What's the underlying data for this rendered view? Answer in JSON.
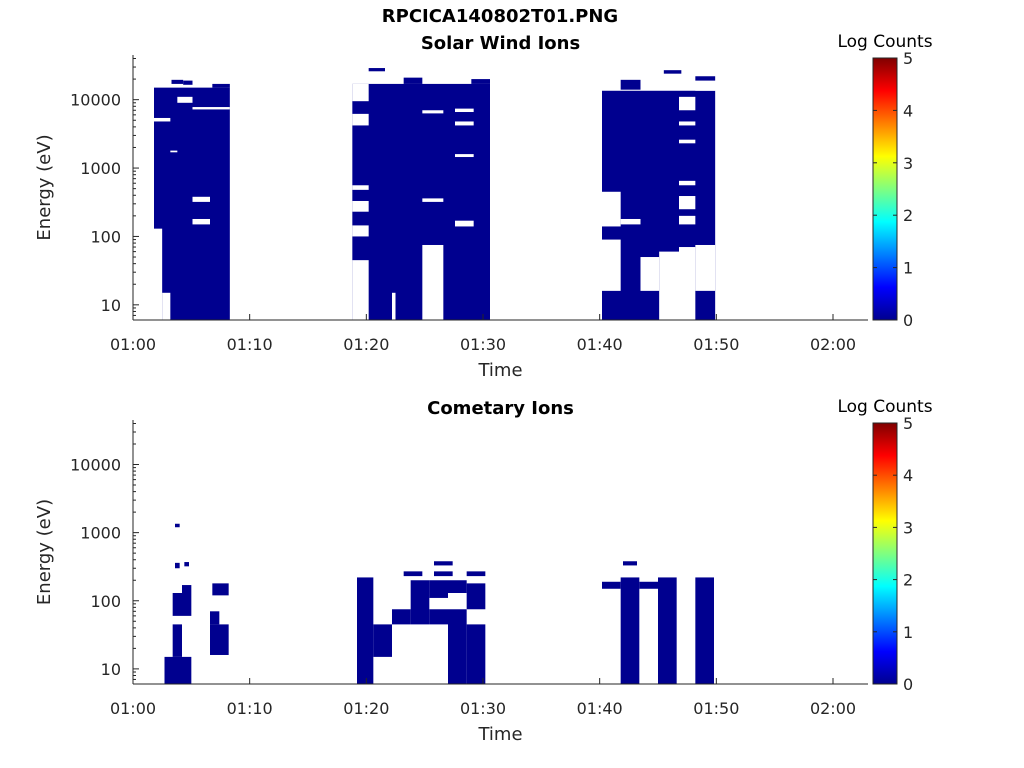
{
  "figure": {
    "title": "RPCICA140802T01.PNG"
  },
  "chart_data": [
    {
      "type": "heatmap",
      "title": "Solar Wind Ions",
      "xlabel": "Time",
      "ylabel": "Energy (eV)",
      "yscale": "log",
      "ylim": [
        6,
        45000
      ],
      "xlim": [
        "01:00",
        "02:03"
      ],
      "xticks": [
        "01:00",
        "01:10",
        "01:20",
        "01:30",
        "01:40",
        "01:50",
        "02:00"
      ],
      "yticks": [
        10,
        100,
        1000,
        10000
      ],
      "ytick_labels": [
        "10",
        "100",
        "1000",
        "10000"
      ],
      "colorbar": {
        "label": "Log Counts",
        "range": [
          0,
          5
        ],
        "ticks": [
          "0",
          "1",
          "2",
          "3",
          "4",
          "5"
        ]
      },
      "fill_color": "#00008f",
      "cells": [
        {
          "t0": "01:01.8",
          "t1": "01:08.3",
          "e0": 6,
          "e1": 15000
        },
        {
          "t0": "01:03.3",
          "t1": "01:04.3",
          "e0": 17000,
          "e1": 19500
        },
        {
          "t0": "01:04.3",
          "t1": "01:05.1",
          "e0": 16500,
          "e1": 19000
        },
        {
          "t0": "01:06.8",
          "t1": "01:08.3",
          "e0": 15000,
          "e1": 17000
        },
        {
          "t0": "01:18.8",
          "t1": "01:30.6",
          "e0": 6,
          "e1": 17000
        },
        {
          "t0": "01:20.2",
          "t1": "01:21.6",
          "e0": 26000,
          "e1": 29000
        },
        {
          "t0": "01:23.2",
          "t1": "01:24.8",
          "e0": 17000,
          "e1": 21000
        },
        {
          "t0": "01:29.0",
          "t1": "01:30.6",
          "e0": 17000,
          "e1": 20000
        },
        {
          "t0": "01:40.2",
          "t1": "01:49.9",
          "e0": 6,
          "e1": 13500
        },
        {
          "t0": "01:41.8",
          "t1": "01:43.5",
          "e0": 14000,
          "e1": 19500
        },
        {
          "t0": "01:45.5",
          "t1": "01:47.0",
          "e0": 24000,
          "e1": 27000
        },
        {
          "t0": "01:48.2",
          "t1": "01:49.9",
          "e0": 19000,
          "e1": 22000
        }
      ],
      "gaps": [
        {
          "t0": "01:01.8",
          "t1": "01:02.5",
          "e0": 6,
          "e1": 130
        },
        {
          "t0": "01:02.5",
          "t1": "01:03.2",
          "e0": 6,
          "e1": 15
        },
        {
          "t0": "01:03.2",
          "t1": "01:03.8",
          "e0": 1700,
          "e1": 1800
        },
        {
          "t0": "01:05.1",
          "t1": "01:06.6",
          "e0": 150,
          "e1": 180
        },
        {
          "t0": "01:05.1",
          "t1": "01:06.6",
          "e0": 320,
          "e1": 380
        },
        {
          "t0": "01:05.1",
          "t1": "01:08.3",
          "e0": 7200,
          "e1": 7800
        },
        {
          "t0": "01:01.8",
          "t1": "01:03.2",
          "e0": 4800,
          "e1": 5400
        },
        {
          "t0": "01:03.8",
          "t1": "01:05.1",
          "e0": 9000,
          "e1": 11000
        },
        {
          "t0": "01:18.8",
          "t1": "01:20.2",
          "e0": 6,
          "e1": 45
        },
        {
          "t0": "01:18.8",
          "t1": "01:20.2",
          "e0": 100,
          "e1": 145
        },
        {
          "t0": "01:18.8",
          "t1": "01:20.2",
          "e0": 230,
          "e1": 330
        },
        {
          "t0": "01:18.8",
          "t1": "01:20.2",
          "e0": 480,
          "e1": 560
        },
        {
          "t0": "01:18.8",
          "t1": "01:20.2",
          "e0": 4200,
          "e1": 6200
        },
        {
          "t0": "01:18.8",
          "t1": "01:20.2",
          "e0": 9500,
          "e1": 17000
        },
        {
          "t0": "01:22.2",
          "t1": "01:22.5",
          "e0": 6,
          "e1": 15
        },
        {
          "t0": "01:24.8",
          "t1": "01:26.6",
          "e0": 6,
          "e1": 75
        },
        {
          "t0": "01:24.8",
          "t1": "01:26.6",
          "e0": 320,
          "e1": 360
        },
        {
          "t0": "01:24.8",
          "t1": "01:26.6",
          "e0": 6300,
          "e1": 7000
        },
        {
          "t0": "01:27.6",
          "t1": "01:29.2",
          "e0": 140,
          "e1": 170
        },
        {
          "t0": "01:27.6",
          "t1": "01:29.2",
          "e0": 1450,
          "e1": 1600
        },
        {
          "t0": "01:27.6",
          "t1": "01:29.2",
          "e0": 4200,
          "e1": 4800
        },
        {
          "t0": "01:27.6",
          "t1": "01:29.2",
          "e0": 6600,
          "e1": 7400
        },
        {
          "t0": "01:40.2",
          "t1": "01:41.8",
          "e0": 16,
          "e1": 90
        },
        {
          "t0": "01:40.2",
          "t1": "01:41.8",
          "e0": 140,
          "e1": 450
        },
        {
          "t0": "01:41.8",
          "t1": "01:43.5",
          "e0": 150,
          "e1": 180
        },
        {
          "t0": "01:43.5",
          "t1": "01:45.1",
          "e0": 16,
          "e1": 50
        },
        {
          "t0": "01:45.1",
          "t1": "01:46.8",
          "e0": 6,
          "e1": 60
        },
        {
          "t0": "01:46.8",
          "t1": "01:48.2",
          "e0": 6,
          "e1": 70
        },
        {
          "t0": "01:46.8",
          "t1": "01:48.2",
          "e0": 150,
          "e1": 200
        },
        {
          "t0": "01:46.8",
          "t1": "01:48.2",
          "e0": 250,
          "e1": 390
        },
        {
          "t0": "01:46.8",
          "t1": "01:48.2",
          "e0": 560,
          "e1": 650
        },
        {
          "t0": "01:46.8",
          "t1": "01:48.2",
          "e0": 2300,
          "e1": 2600
        },
        {
          "t0": "01:46.8",
          "t1": "01:48.2",
          "e0": 4200,
          "e1": 4800
        },
        {
          "t0": "01:46.8",
          "t1": "01:48.2",
          "e0": 7000,
          "e1": 11000
        },
        {
          "t0": "01:48.2",
          "t1": "01:49.9",
          "e0": 16,
          "e1": 75
        },
        {
          "t0": "01:48.2",
          "t1": "01:49.9",
          "e0": 13500,
          "e1": 18000
        }
      ]
    },
    {
      "type": "heatmap",
      "title": "Cometary Ions",
      "xlabel": "Time",
      "ylabel": "Energy (eV)",
      "yscale": "log",
      "ylim": [
        6,
        45000
      ],
      "xlim": [
        "01:00",
        "02:03"
      ],
      "xticks": [
        "01:00",
        "01:10",
        "01:20",
        "01:30",
        "01:40",
        "01:50",
        "02:00"
      ],
      "yticks": [
        10,
        100,
        1000,
        10000
      ],
      "ytick_labels": [
        "10",
        "100",
        "1000",
        "10000"
      ],
      "colorbar": {
        "label": "Log Counts",
        "range": [
          0,
          5
        ],
        "ticks": [
          "0",
          "1",
          "2",
          "3",
          "4",
          "5"
        ]
      },
      "fill_color": "#00008f",
      "cells": [
        {
          "t0": "01:02.7",
          "t1": "01:05.0",
          "e0": 6,
          "e1": 15
        },
        {
          "t0": "01:03.4",
          "t1": "01:04.2",
          "e0": 15,
          "e1": 45
        },
        {
          "t0": "01:03.4",
          "t1": "01:05.0",
          "e0": 60,
          "e1": 130
        },
        {
          "t0": "01:04.2",
          "t1": "01:05.0",
          "e0": 130,
          "e1": 170
        },
        {
          "t0": "01:03.6",
          "t1": "01:04.0",
          "e0": 1200,
          "e1": 1350
        },
        {
          "t0": "01:03.6",
          "t1": "01:04.0",
          "e0": 300,
          "e1": 360
        },
        {
          "t0": "01:04.4",
          "t1": "01:04.8",
          "e0": 320,
          "e1": 370
        },
        {
          "t0": "01:06.6",
          "t1": "01:08.2",
          "e0": 16,
          "e1": 45
        },
        {
          "t0": "01:06.6",
          "t1": "01:07.4",
          "e0": 45,
          "e1": 70
        },
        {
          "t0": "01:06.8",
          "t1": "01:08.2",
          "e0": 120,
          "e1": 180
        },
        {
          "t0": "01:19.2",
          "t1": "01:20.6",
          "e0": 6,
          "e1": 220
        },
        {
          "t0": "01:20.6",
          "t1": "01:22.2",
          "e0": 15,
          "e1": 45
        },
        {
          "t0": "01:22.2",
          "t1": "01:23.8",
          "e0": 45,
          "e1": 75
        },
        {
          "t0": "01:23.8",
          "t1": "01:25.4",
          "e0": 45,
          "e1": 200
        },
        {
          "t0": "01:25.4",
          "t1": "01:27.0",
          "e0": 45,
          "e1": 75
        },
        {
          "t0": "01:27.0",
          "t1": "01:28.6",
          "e0": 6,
          "e1": 75
        },
        {
          "t0": "01:27.0",
          "t1": "01:28.6",
          "e0": 130,
          "e1": 200
        },
        {
          "t0": "01:28.6",
          "t1": "01:30.2",
          "e0": 6,
          "e1": 45
        },
        {
          "t0": "01:28.6",
          "t1": "01:30.2",
          "e0": 75,
          "e1": 180
        },
        {
          "t0": "01:25.4",
          "t1": "01:27.0",
          "e0": 110,
          "e1": 200
        },
        {
          "t0": "01:23.2",
          "t1": "01:24.8",
          "e0": 230,
          "e1": 270
        },
        {
          "t0": "01:25.8",
          "t1": "01:27.4",
          "e0": 230,
          "e1": 270
        },
        {
          "t0": "01:25.8",
          "t1": "01:27.4",
          "e0": 330,
          "e1": 380
        },
        {
          "t0": "01:28.6",
          "t1": "01:30.2",
          "e0": 230,
          "e1": 270
        },
        {
          "t0": "01:40.2",
          "t1": "01:41.8",
          "e0": 150,
          "e1": 190
        },
        {
          "t0": "01:41.8",
          "t1": "01:43.4",
          "e0": 6,
          "e1": 220
        },
        {
          "t0": "01:42.0",
          "t1": "01:43.2",
          "e0": 330,
          "e1": 380
        },
        {
          "t0": "01:43.4",
          "t1": "01:45.0",
          "e0": 150,
          "e1": 190
        },
        {
          "t0": "01:45.0",
          "t1": "01:46.6",
          "e0": 6,
          "e1": 220
        },
        {
          "t0": "01:48.2",
          "t1": "01:49.8",
          "e0": 6,
          "e1": 220
        }
      ],
      "gaps": []
    }
  ]
}
